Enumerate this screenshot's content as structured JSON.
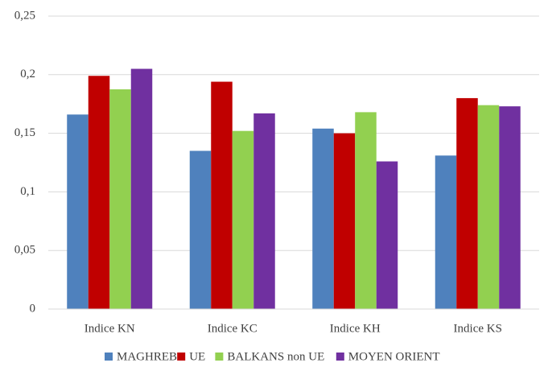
{
  "chart_data": {
    "type": "bar",
    "categories": [
      "Indice KN",
      "Indice KC",
      "Indice KH",
      "Indice KS"
    ],
    "series": [
      {
        "name": "MAGHREB",
        "color": "#4f81bd",
        "values": [
          0.166,
          0.135,
          0.154,
          0.131
        ]
      },
      {
        "name": "UE",
        "color": "#c00000",
        "values": [
          0.199,
          0.194,
          0.15,
          0.18
        ]
      },
      {
        "name": "BALKANS non UE",
        "color": "#92d050",
        "values": [
          0.1875,
          0.152,
          0.168,
          0.174
        ]
      },
      {
        "name": "MOYEN ORIENT",
        "color": "#7030a0",
        "values": [
          0.205,
          0.167,
          0.126,
          0.173
        ]
      }
    ],
    "ylim": [
      0,
      0.25
    ],
    "yticks": [
      0,
      {
        "value": 0.05,
        "label": "0,05"
      },
      {
        "value": 0.1,
        "label": "0,1"
      },
      {
        "value": 0.15,
        "label": "0,15"
      },
      {
        "value": 0.2,
        "label": "0,2"
      },
      {
        "value": 0.25,
        "label": "0,25"
      }
    ],
    "grid": true,
    "legend": "bottom"
  }
}
